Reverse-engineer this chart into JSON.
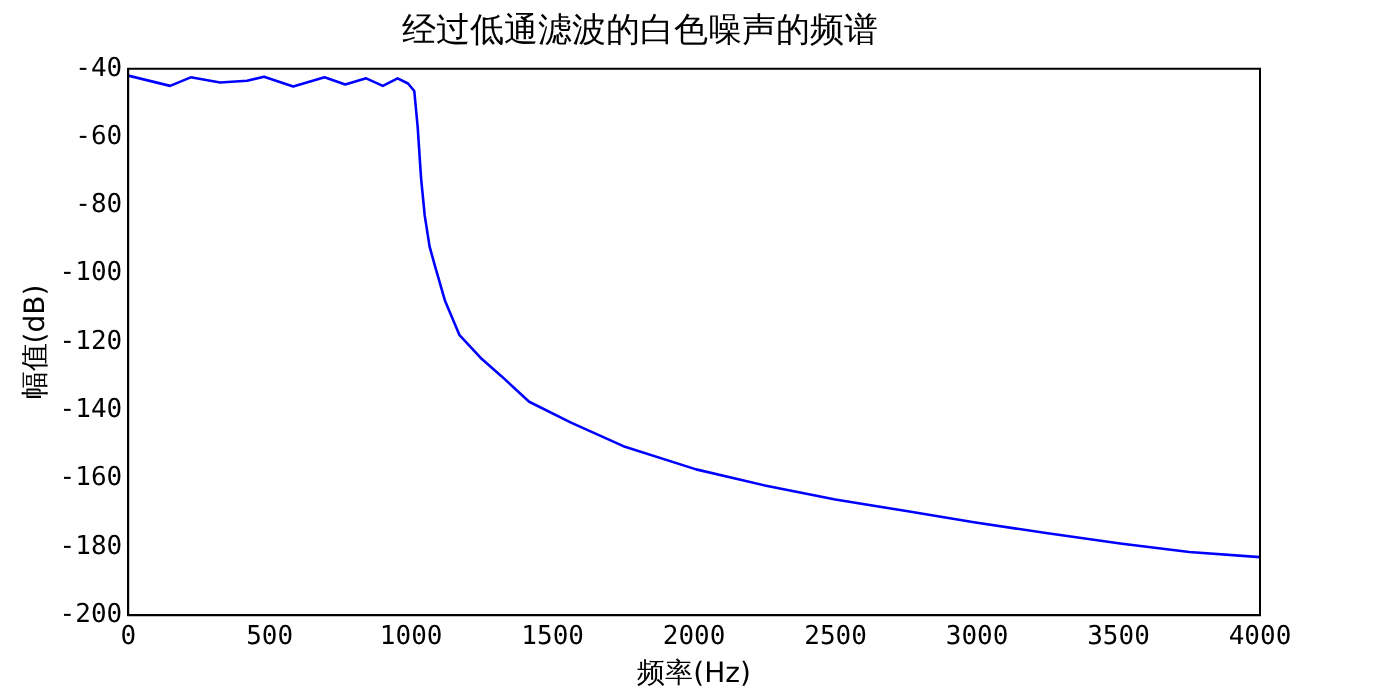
{
  "chart_data": {
    "type": "line",
    "title": "经过低通滤波的白色噪声的频谱",
    "xlabel": "频率(Hz)",
    "ylabel": "幅值(dB)",
    "xlim": [
      0,
      4000
    ],
    "xticks": [
      0,
      500,
      1000,
      1500,
      2000,
      2500,
      3000,
      3500,
      4000
    ],
    "ylim": [
      -200,
      -40
    ],
    "yticks": [
      -200,
      -180,
      -160,
      -140,
      -120,
      -100,
      -80,
      -60,
      -40
    ],
    "grid": false,
    "legend": false,
    "marker": "none",
    "line_style": "solid",
    "series": [
      {
        "color": "#0000ff",
        "x": [
          0,
          148,
          221,
          325,
          420,
          480,
          583,
          694,
          767,
          841,
          900,
          952,
          989,
          1011,
          1023,
          1035,
          1048,
          1065,
          1085,
          1120,
          1171,
          1250,
          1319,
          1417,
          1565,
          1750,
          2007,
          2250,
          2499,
          2750,
          2989,
          3250,
          3506,
          3750,
          4000
        ],
        "values": [
          -42,
          -45,
          -42.5,
          -44,
          -43.5,
          -42.3,
          -45.2,
          -42.5,
          -44.6,
          -42.8,
          -45,
          -42.8,
          -44.3,
          -46.5,
          -57,
          -72,
          -83,
          -92,
          -98,
          -108,
          -118,
          -125,
          -130,
          -137.5,
          -143.6,
          -150.5,
          -157.3,
          -162,
          -166.1,
          -169.5,
          -172.8,
          -176,
          -179,
          -181.5,
          -183
        ]
      }
    ]
  }
}
